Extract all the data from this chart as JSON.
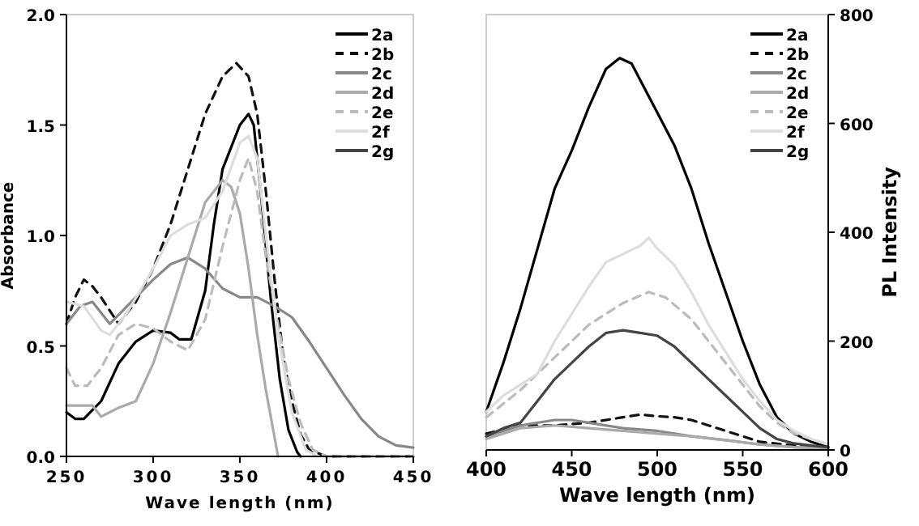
{
  "chart_data": [
    {
      "type": "line",
      "xlabel": "Wave length (nm)",
      "ylabel": "Absorbance",
      "xlim": [
        250,
        450
      ],
      "xticks": [
        250,
        300,
        350,
        400,
        450
      ],
      "ylim": [
        0,
        2
      ],
      "yticks": [
        {
          "value": 0,
          "label": "0.0"
        },
        {
          "value": 0.5,
          "label": "0.5"
        },
        {
          "value": 1,
          "label": "1.0"
        },
        {
          "value": 1.5,
          "label": "1.5"
        },
        {
          "value": 2,
          "label": "2.0"
        }
      ],
      "legend": "top right",
      "grid": false,
      "series": [
        {
          "name": "2a",
          "color": "#000000",
          "x": [
            250,
            255,
            260,
            270,
            280,
            290,
            300,
            310,
            315,
            322,
            330,
            335,
            340,
            350,
            355,
            358,
            362,
            368,
            373,
            378,
            383,
            385
          ],
          "values": [
            0.2,
            0.17,
            0.17,
            0.25,
            0.42,
            0.52,
            0.57,
            0.56,
            0.53,
            0.53,
            0.75,
            1.05,
            1.3,
            1.5,
            1.55,
            1.5,
            1.2,
            0.7,
            0.35,
            0.12,
            0.02,
            0
          ]
        },
        {
          "name": "2b",
          "color": "#111111",
          "line_style": "dashed",
          "x": [
            250,
            255,
            260,
            265,
            270,
            275,
            280,
            290,
            300,
            310,
            320,
            330,
            340,
            348,
            355,
            360,
            365,
            370,
            375,
            380,
            385,
            390,
            400,
            450
          ],
          "values": [
            0.6,
            0.72,
            0.8,
            0.77,
            0.72,
            0.66,
            0.6,
            0.7,
            0.85,
            1.05,
            1.3,
            1.55,
            1.72,
            1.78,
            1.72,
            1.55,
            1.2,
            0.8,
            0.45,
            0.25,
            0.1,
            0.03,
            0,
            0
          ]
        },
        {
          "name": "2c",
          "color": "#888888",
          "x": [
            250,
            258,
            265,
            275,
            290,
            300,
            310,
            320,
            330,
            340,
            350,
            360,
            370,
            380,
            390,
            400,
            410,
            420,
            430,
            440,
            450
          ],
          "values": [
            0.6,
            0.68,
            0.7,
            0.6,
            0.72,
            0.8,
            0.87,
            0.9,
            0.85,
            0.76,
            0.72,
            0.72,
            0.68,
            0.63,
            0.52,
            0.4,
            0.28,
            0.17,
            0.09,
            0.05,
            0.04
          ]
        },
        {
          "name": "2d",
          "color": "#aaaaaa",
          "x": [
            250,
            260,
            265,
            270,
            280,
            290,
            300,
            310,
            320,
            330,
            340,
            345,
            350,
            355,
            360,
            365,
            372
          ],
          "values": [
            0.23,
            0.23,
            0.23,
            0.18,
            0.22,
            0.25,
            0.42,
            0.65,
            0.9,
            1.15,
            1.25,
            1.22,
            1.1,
            0.85,
            0.55,
            0.3,
            0
          ]
        },
        {
          "name": "2e",
          "color": "#bbbbbb",
          "line_style": "dashed",
          "x": [
            250,
            255,
            262,
            270,
            280,
            290,
            300,
            310,
            320,
            330,
            340,
            350,
            355,
            360,
            365,
            372,
            378,
            385,
            392,
            400,
            450
          ],
          "values": [
            0.4,
            0.32,
            0.32,
            0.4,
            0.55,
            0.6,
            0.58,
            0.52,
            0.48,
            0.62,
            0.95,
            1.25,
            1.35,
            1.2,
            0.9,
            0.6,
            0.35,
            0.15,
            0.03,
            0,
            0
          ]
        },
        {
          "name": "2f",
          "color": "#dddddd",
          "x": [
            250,
            260,
            270,
            275,
            285,
            300,
            310,
            320,
            330,
            340,
            350,
            355,
            360,
            365,
            372,
            380,
            388,
            395
          ],
          "values": [
            0.7,
            0.68,
            0.57,
            0.55,
            0.65,
            0.85,
            1,
            1.05,
            1.08,
            1.2,
            1.42,
            1.45,
            1.35,
            1,
            0.55,
            0.2,
            0.03,
            0
          ]
        },
        {
          "name": "2g",
          "color": "#444444"
        }
      ]
    },
    {
      "type": "line",
      "xlabel": "Wave length (nm)",
      "y2label": "PL Intensity",
      "xlim": [
        400,
        600
      ],
      "xticks": [
        400,
        450,
        500,
        550,
        600
      ],
      "y2lim": [
        0,
        800
      ],
      "y2ticks": [
        0,
        200,
        400,
        600,
        800
      ],
      "legend": "top right",
      "grid": false,
      "series": [
        {
          "name": "2a",
          "color": "#000000",
          "axis": "y2",
          "x": [
            400,
            410,
            420,
            430,
            440,
            450,
            460,
            470,
            478,
            485,
            490,
            500,
            510,
            520,
            530,
            540,
            550,
            560,
            570,
            580,
            590,
            600
          ],
          "values": [
            70,
            160,
            260,
            370,
            480,
            550,
            630,
            700,
            720,
            710,
            680,
            620,
            560,
            480,
            380,
            290,
            200,
            120,
            60,
            30,
            15,
            5
          ]
        },
        {
          "name": "2b",
          "color": "#111111",
          "line_style": "dashed",
          "axis": "y2",
          "x": [
            400,
            420,
            440,
            460,
            480,
            490,
            500,
            510,
            520,
            530,
            540,
            550,
            560,
            580,
            600
          ],
          "values": [
            30,
            45,
            45,
            50,
            60,
            65,
            62,
            60,
            55,
            45,
            35,
            25,
            15,
            8,
            5
          ]
        },
        {
          "name": "2c",
          "color": "#888888",
          "axis": "y2",
          "x": [
            400,
            420,
            440,
            450,
            460,
            480,
            500,
            520,
            540,
            560,
            580,
            600
          ],
          "values": [
            25,
            45,
            55,
            55,
            50,
            40,
            35,
            25,
            18,
            10,
            5,
            3
          ]
        },
        {
          "name": "2d",
          "color": "#aaaaaa",
          "axis": "y2",
          "x": [
            400,
            420,
            440,
            460,
            480,
            500,
            520,
            540,
            560,
            580,
            600
          ],
          "values": [
            20,
            40,
            45,
            40,
            35,
            30,
            25,
            18,
            10,
            5,
            3
          ]
        },
        {
          "name": "2e",
          "color": "#bbbbbb",
          "line_style": "dashed",
          "axis": "y2",
          "x": [
            400,
            420,
            440,
            460,
            480,
            495,
            505,
            520,
            530,
            540,
            550,
            560,
            570,
            580,
            590,
            600
          ],
          "values": [
            60,
            110,
            170,
            230,
            270,
            290,
            280,
            240,
            200,
            160,
            120,
            80,
            50,
            30,
            20,
            10
          ]
        },
        {
          "name": "2f",
          "color": "#dddddd",
          "axis": "y2",
          "x": [
            400,
            410,
            420,
            430,
            440,
            450,
            460,
            470,
            480,
            490,
            495,
            500,
            510,
            520,
            530,
            540,
            550,
            560,
            570,
            580,
            590,
            600
          ],
          "values": [
            70,
            100,
            120,
            140,
            200,
            250,
            300,
            345,
            360,
            375,
            390,
            370,
            340,
            290,
            230,
            180,
            130,
            90,
            55,
            35,
            20,
            10
          ]
        },
        {
          "name": "2g",
          "color": "#444444",
          "axis": "y2",
          "x": [
            400,
            410,
            420,
            430,
            440,
            450,
            460,
            470,
            480,
            490,
            500,
            510,
            520,
            530,
            540,
            550,
            560,
            570,
            580,
            590,
            600
          ],
          "values": [
            25,
            40,
            50,
            90,
            130,
            160,
            190,
            215,
            220,
            215,
            210,
            190,
            160,
            130,
            100,
            70,
            40,
            20,
            12,
            8,
            5
          ]
        }
      ]
    }
  ]
}
